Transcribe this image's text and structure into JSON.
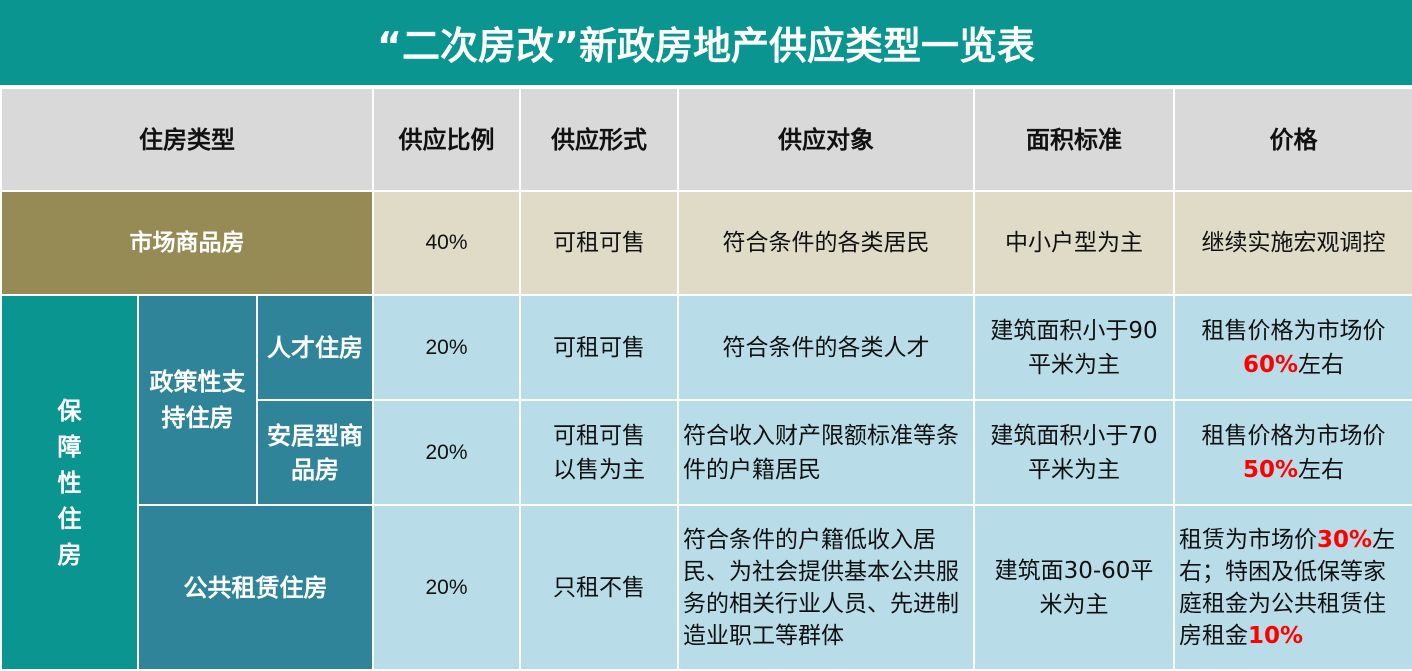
{
  "title": "“二次房改”新政房地产供应类型一览表",
  "headers": [
    "住房类型",
    "供应比例",
    "供应形式",
    "供应对象",
    "面积标准",
    "价格"
  ],
  "market": {
    "type": "市场商品房",
    "ratio": "40%",
    "form": "可租可售",
    "target": "符合条件的各类居民",
    "area": "中小户型为主",
    "price": "继续实施宏观调控"
  },
  "guarantee": {
    "label": "保障性住房",
    "policy_label": "政策性支持住房",
    "rows": [
      {
        "type": "人才住房",
        "ratio": "20%",
        "form": "可租可售",
        "target": "符合条件的各类人才",
        "area": "建筑面积小于90平米为主",
        "price": [
          "租售价格为市场价",
          "60%",
          "左右"
        ]
      },
      {
        "type": "安居型商品房",
        "ratio": "20%",
        "form": "可租可售以售为主",
        "target": "符合收入财产限额标准等条件的户籍居民",
        "area": "建筑面积小于70平米为主",
        "price": [
          "租售价格为市场价",
          "50%",
          "左右"
        ]
      },
      {
        "type": "公共租赁住房",
        "ratio": "20%",
        "form": "只租不售",
        "target": "符合条件的户籍低收入居民、为社会提供基本公共服务的相关行业人员、先进制造业职工等群体",
        "area": "建筑面30-60平米为主",
        "price": [
          "租赁为市场价",
          "30%",
          "左右；特困及低保等家庭租金为公共租赁住房租金",
          "10%"
        ]
      }
    ]
  },
  "colors": {
    "title": "#0a9590",
    "header": "#d9d9d9",
    "market_label": "#968a55",
    "market_cell": "#e0dbc7",
    "guarantee": "#0a9590",
    "sub": "#2f8499",
    "cell": "#b8dde8",
    "highlight": "#ff0000"
  }
}
